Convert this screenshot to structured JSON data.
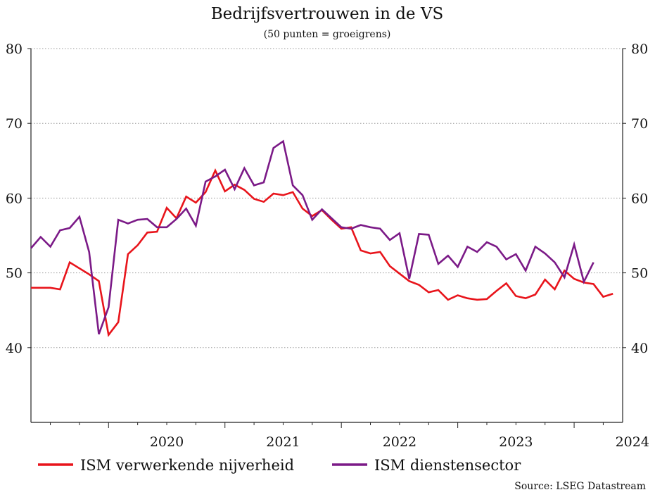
{
  "chart_data": {
    "type": "line",
    "title": "Bedrijfsvertrouwen in de VS",
    "subtitle": "(50 punten = groeigrens)",
    "source": "Source: LSEG Datastream",
    "ylim": [
      30,
      80
    ],
    "yticks": [
      40,
      50,
      60,
      70,
      80
    ],
    "grid": true,
    "legend_position": "bottom",
    "x_start": "2019-05",
    "x_end": "2024-06",
    "year_labels": [
      "2020",
      "2021",
      "2022",
      "2023",
      "2024"
    ],
    "series": [
      {
        "name": "ISM verwerkende nijverheid",
        "color": "#e8141b",
        "values": [
          48.0,
          48.0,
          48.0,
          47.8,
          51.4,
          50.6,
          49.8,
          48.9,
          41.7,
          43.4,
          52.5,
          53.7,
          55.4,
          55.5,
          58.7,
          57.3,
          60.2,
          59.4,
          60.8,
          63.7,
          60.9,
          61.8,
          61.1,
          59.9,
          59.5,
          60.6,
          60.4,
          60.8,
          58.6,
          57.6,
          58.4,
          57.1,
          55.9,
          56.1,
          53.0,
          52.6,
          52.8,
          50.9,
          49.9,
          48.9,
          48.4,
          47.4,
          47.7,
          46.4,
          47.0,
          46.6,
          46.4,
          46.5,
          47.6,
          48.6,
          46.9,
          46.6,
          47.1,
          49.1,
          47.8,
          50.3,
          49.2,
          48.7,
          48.5,
          46.8,
          47.2
        ],
        "note": "monthly, May 2019 to May 2024"
      },
      {
        "name": "ISM dienstensector",
        "color": "#7b1a87",
        "values": [
          53.3,
          54.8,
          53.5,
          55.7,
          56.0,
          57.5,
          52.8,
          41.8,
          45.4,
          57.1,
          56.6,
          57.1,
          57.2,
          56.1,
          56.1,
          57.2,
          58.6,
          56.3,
          62.2,
          62.9,
          63.8,
          61.2,
          64.0,
          61.7,
          62.1,
          66.7,
          67.6,
          61.7,
          60.4,
          57.1,
          58.5,
          57.3,
          56.1,
          55.9,
          56.4,
          56.1,
          55.9,
          54.4,
          55.3,
          49.2,
          55.2,
          55.1,
          51.2,
          52.3,
          50.8,
          53.5,
          52.8,
          54.1,
          53.5,
          51.8,
          52.5,
          50.3,
          53.5,
          52.6,
          51.4,
          49.4,
          53.8,
          48.8,
          51.4
        ],
        "note": "monthly, May 2019 to March 2024"
      }
    ]
  }
}
